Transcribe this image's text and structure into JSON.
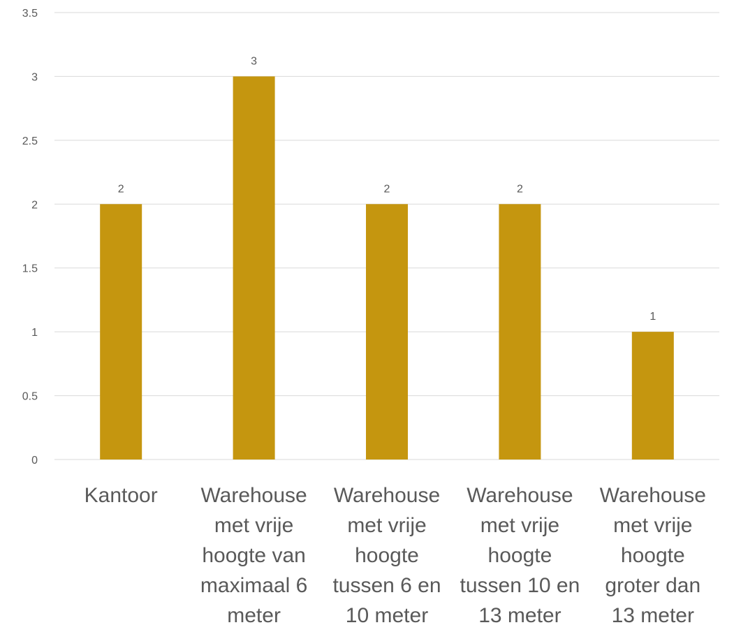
{
  "chart_data": {
    "type": "bar",
    "categories": [
      [
        "Kantoor"
      ],
      [
        "Warehouse",
        "met vrije",
        "hoogte van",
        "maximaal 6",
        "meter"
      ],
      [
        "Warehouse",
        "met vrije",
        "hoogte",
        "tussen 6 en",
        "10 meter"
      ],
      [
        "Warehouse",
        "met vrije",
        "hoogte",
        "tussen 10 en",
        "13 meter"
      ],
      [
        "Warehouse",
        "met vrije",
        "hoogte",
        "groter dan",
        "13 meter"
      ]
    ],
    "values": [
      2,
      3,
      2,
      2,
      1
    ],
    "data_labels": [
      "2",
      "3",
      "2",
      "2",
      "1"
    ],
    "yticks": [
      "0",
      "0.5",
      "1",
      "1.5",
      "2",
      "2.5",
      "3",
      "3.5"
    ],
    "ylim": [
      0,
      3.5
    ],
    "grid": true,
    "bar_color": "#c5960f"
  }
}
